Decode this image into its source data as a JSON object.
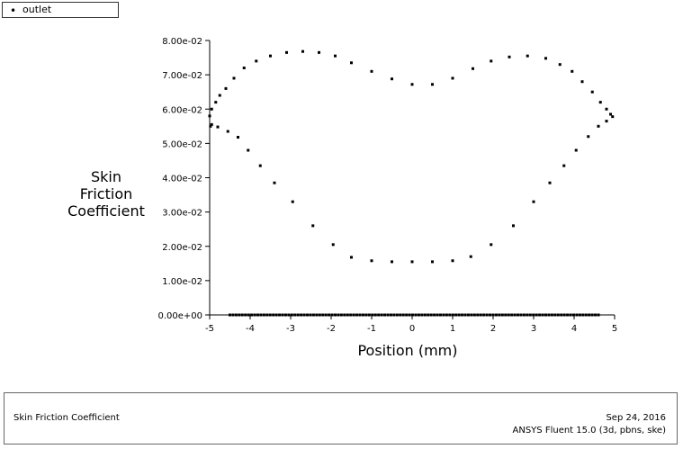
{
  "legend": {
    "marker": "•",
    "label": "outlet"
  },
  "footer": {
    "title": "Skin Friction Coefficient",
    "date": "Sep 24, 2016",
    "software": "ANSYS Fluent 15.0 (3d, pbns, ske)"
  },
  "chart_data": {
    "type": "scatter",
    "xlabel": "Position (mm)",
    "ylabel": [
      "Skin",
      "Friction",
      "Coefficient"
    ],
    "xlim": [
      -5,
      5
    ],
    "ylim": [
      0,
      0.08
    ],
    "xticks": [
      "-5",
      "-4",
      "-3",
      "-2",
      "-1",
      "0",
      "1",
      "2",
      "3",
      "4",
      "5"
    ],
    "yticks": [
      "0.00e+00",
      "1.00e-02",
      "2.00e-02",
      "3.00e-02",
      "4.00e-02",
      "5.00e-02",
      "6.00e-02",
      "7.00e-02",
      "8.00e-02"
    ],
    "grid": false,
    "legend_position": "top-left",
    "series": [
      {
        "name": "outlet",
        "color": "#000000",
        "points": [
          [
            -5.0,
            0.058
          ],
          [
            -4.95,
            0.06
          ],
          [
            -4.85,
            0.062
          ],
          [
            -4.75,
            0.064
          ],
          [
            -4.6,
            0.066
          ],
          [
            -4.4,
            0.069
          ],
          [
            -4.15,
            0.072
          ],
          [
            -3.85,
            0.074
          ],
          [
            -3.5,
            0.0755
          ],
          [
            -3.1,
            0.0765
          ],
          [
            -2.7,
            0.0768
          ],
          [
            -2.3,
            0.0765
          ],
          [
            -1.9,
            0.0755
          ],
          [
            -1.5,
            0.0735
          ],
          [
            -1.0,
            0.071
          ],
          [
            -0.5,
            0.0688
          ],
          [
            0.0,
            0.0672
          ],
          [
            0.5,
            0.0672
          ],
          [
            1.0,
            0.069
          ],
          [
            1.5,
            0.0718
          ],
          [
            1.95,
            0.074
          ],
          [
            2.4,
            0.0752
          ],
          [
            2.85,
            0.0755
          ],
          [
            3.3,
            0.0748
          ],
          [
            3.65,
            0.073
          ],
          [
            3.95,
            0.071
          ],
          [
            4.2,
            0.068
          ],
          [
            4.45,
            0.065
          ],
          [
            4.65,
            0.062
          ],
          [
            4.8,
            0.06
          ],
          [
            4.9,
            0.0585
          ],
          [
            4.95,
            0.0578
          ],
          [
            4.8,
            0.0565
          ],
          [
            4.6,
            0.055
          ],
          [
            4.35,
            0.052
          ],
          [
            4.05,
            0.048
          ],
          [
            3.75,
            0.0435
          ],
          [
            3.4,
            0.0385
          ],
          [
            3.0,
            0.033
          ],
          [
            2.5,
            0.026
          ],
          [
            1.95,
            0.0205
          ],
          [
            1.45,
            0.017
          ],
          [
            1.0,
            0.0158
          ],
          [
            0.5,
            0.0155
          ],
          [
            0.0,
            0.0155
          ],
          [
            -0.5,
            0.0155
          ],
          [
            -1.0,
            0.0158
          ],
          [
            -1.5,
            0.0168
          ],
          [
            -1.95,
            0.0205
          ],
          [
            -2.45,
            0.026
          ],
          [
            -2.95,
            0.033
          ],
          [
            -3.4,
            0.0385
          ],
          [
            -3.75,
            0.0435
          ],
          [
            -4.05,
            0.048
          ],
          [
            -4.3,
            0.0518
          ],
          [
            -4.55,
            0.0535
          ],
          [
            -4.8,
            0.0548
          ],
          [
            -4.98,
            0.055
          ],
          [
            -4.95,
            0.0555
          ]
        ],
        "baseline_y": 0.0,
        "baseline_x_range": [
          -4.5,
          4.6
        ],
        "baseline_count": 120
      }
    ]
  }
}
